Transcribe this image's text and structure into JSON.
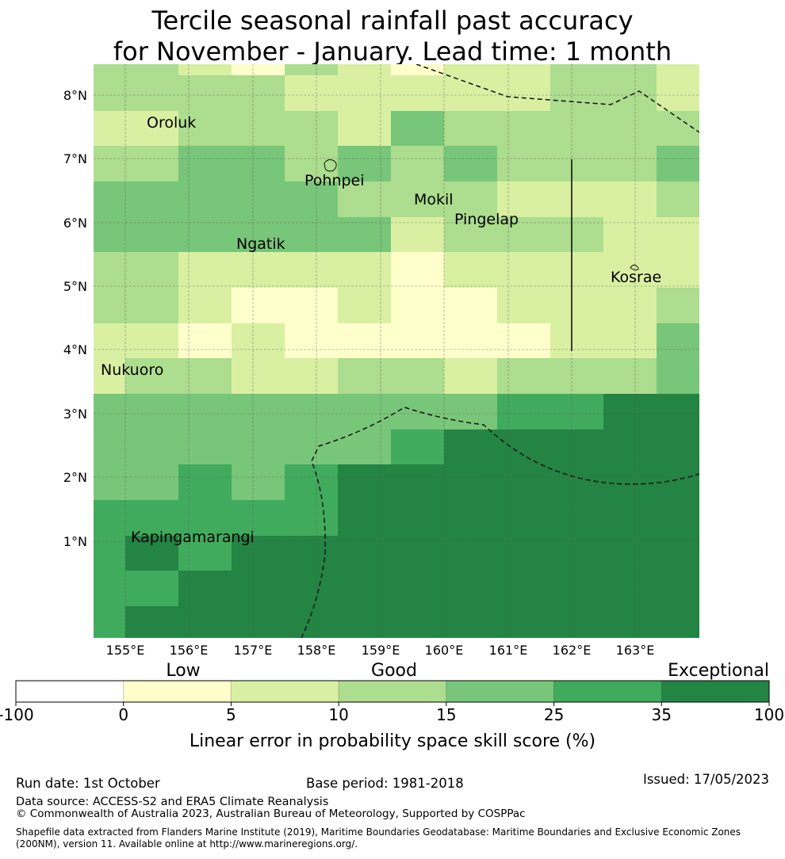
{
  "title": {
    "line1": "Tercile seasonal rainfall past accuracy",
    "line2": "for November - January. Lead time: 1 month"
  },
  "map": {
    "lon_ticks": [
      "155°E",
      "156°E",
      "157°E",
      "158°E",
      "159°E",
      "160°E",
      "161°E",
      "162°E",
      "163°E"
    ],
    "lat_ticks": [
      "8°N",
      "7°N",
      "6°N",
      "5°N",
      "4°N",
      "3°N",
      "2°N",
      "1°N"
    ],
    "places": [
      "Oroluk",
      "Pohnpei",
      "Mokil",
      "Pingelap",
      "Ngatik",
      "Kosrae",
      "Nukuoro",
      "Kapingamarangi"
    ],
    "grid_levels": [
      [
        2,
        2,
        1,
        0,
        2,
        1,
        0,
        1,
        1,
        2,
        2,
        1
      ],
      [
        2,
        2,
        2,
        2,
        1,
        1,
        1,
        1,
        1,
        2,
        2,
        1
      ],
      [
        1,
        1,
        2,
        2,
        2,
        1,
        3,
        2,
        2,
        2,
        2,
        2
      ],
      [
        2,
        2,
        3,
        3,
        2,
        3,
        2,
        3,
        2,
        2,
        2,
        3
      ],
      [
        3,
        3,
        3,
        3,
        3,
        2,
        2,
        2,
        1,
        1,
        1,
        2
      ],
      [
        3,
        3,
        3,
        3,
        3,
        3,
        1,
        2,
        2,
        2,
        1,
        1
      ],
      [
        2,
        2,
        1,
        1,
        1,
        1,
        0,
        1,
        1,
        1,
        1,
        1
      ],
      [
        2,
        2,
        1,
        0,
        0,
        1,
        0,
        0,
        1,
        1,
        1,
        2
      ],
      [
        1,
        1,
        0,
        1,
        0,
        0,
        0,
        0,
        0,
        1,
        1,
        3
      ],
      [
        1,
        2,
        2,
        1,
        1,
        2,
        2,
        1,
        2,
        2,
        2,
        3
      ],
      [
        3,
        3,
        3,
        3,
        3,
        3,
        3,
        3,
        4,
        4,
        5,
        5
      ],
      [
        3,
        3,
        3,
        3,
        3,
        3,
        4,
        5,
        5,
        5,
        5,
        5
      ],
      [
        3,
        3,
        4,
        3,
        4,
        5,
        5,
        5,
        5,
        5,
        5,
        5
      ],
      [
        4,
        4,
        4,
        4,
        4,
        5,
        5,
        5,
        5,
        5,
        5,
        5
      ],
      [
        4,
        5,
        4,
        5,
        5,
        5,
        5,
        5,
        5,
        5,
        5,
        5
      ],
      [
        4,
        4,
        5,
        5,
        5,
        5,
        5,
        5,
        5,
        5,
        5,
        5
      ],
      [
        4,
        5,
        5,
        5,
        5,
        5,
        5,
        5,
        5,
        5,
        5,
        5
      ]
    ]
  },
  "colorbar": {
    "category_labels": [
      "Low",
      "Good",
      "Exceptional"
    ],
    "ticks": [
      "-100",
      "0",
      "5",
      "10",
      "15",
      "25",
      "35",
      "100"
    ],
    "colors": [
      "#ffffff",
      "#ffffcc",
      "#d9f0a3",
      "#addd8e",
      "#78c679",
      "#41ab5d",
      "#238443"
    ],
    "label": "Linear error in probability space skill score (%)"
  },
  "footer": {
    "run_date": "Run date: 1st October",
    "base_period": "Base period: 1981-2018",
    "issued": "Issued: 17/05/2023",
    "data_source": "Data source: ACCESS-S2 and ERA5 Climate Reanalysis",
    "copyright": "© Commonwealth of Australia 2023, Australian Bureau of Meteorology, Supported by COSPPac",
    "shapefile_line1": "Shapefile data extracted from Flanders Marine Institute (2019), Maritime Boundaries Geodatabase: Maritime Boundaries and Exclusive Economic Zones",
    "shapefile_line2": "(200NM), version 11. Available online at http://www.marineregions.org/."
  }
}
